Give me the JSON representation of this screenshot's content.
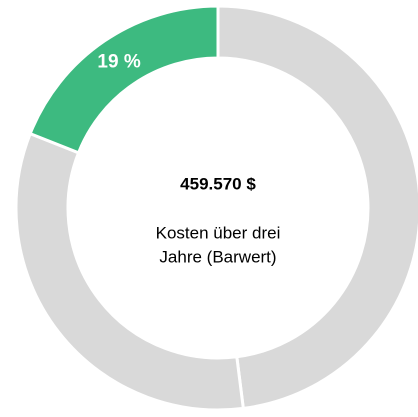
{
  "chart_data": {
    "type": "donut",
    "values": [
      48,
      33,
      19
    ],
    "value_labels": [
      null,
      null,
      "19 %"
    ],
    "colors": [
      "#d9d9d9",
      "#d9d9d9",
      "#3dba80"
    ],
    "center_value": "459.570 $",
    "center_text": [
      "Kosten über drei",
      "Jahre (Barwert)"
    ]
  }
}
